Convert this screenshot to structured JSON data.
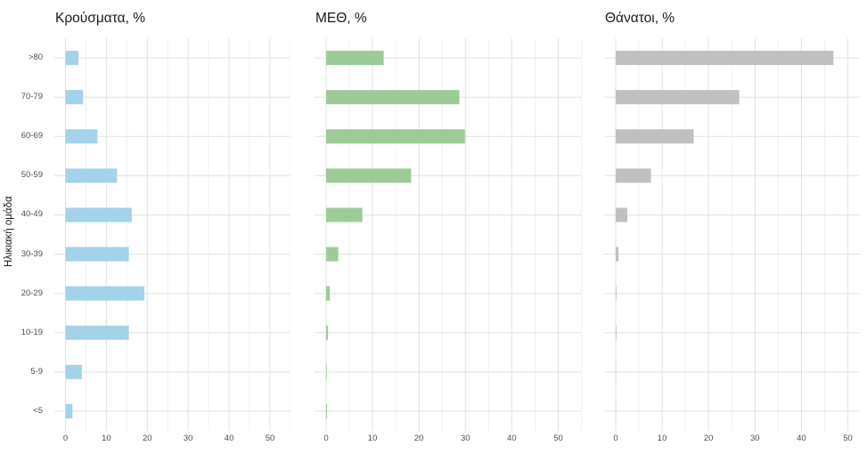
{
  "chart_data": [
    {
      "type": "bar",
      "orientation": "horizontal",
      "title": "Κρούσματα, %",
      "ylabel": "Ηλικιακή ομάδα",
      "xlabel": "",
      "bar_color": "#A3D2EB",
      "categories": [
        ">80",
        "70-79",
        "60-69",
        "50-59",
        "40-49",
        "30-39",
        "20-29",
        "10-19",
        "5-9",
        "<5"
      ],
      "values": [
        3.2,
        4.3,
        7.8,
        12.6,
        16.2,
        15.5,
        19.3,
        15.5,
        4.0,
        1.7
      ],
      "xlim": [
        0,
        55
      ],
      "x_ticks": [
        0,
        10,
        20,
        30,
        40,
        50
      ],
      "grid": "major-and-minor, minor every 5",
      "legend": "none"
    },
    {
      "type": "bar",
      "orientation": "horizontal",
      "title": "ΜΕΘ, %",
      "ylabel": "Ηλικιακή ομάδα",
      "xlabel": "",
      "bar_color": "#9CCB98",
      "categories": [
        ">80",
        "70-79",
        "60-69",
        "50-59",
        "40-49",
        "30-39",
        "20-29",
        "10-19",
        "5-9",
        "<5"
      ],
      "values": [
        12.4,
        28.7,
        29.9,
        18.3,
        7.8,
        2.6,
        0.8,
        0.4,
        0.15,
        0.2
      ],
      "xlim": [
        0,
        55
      ],
      "x_ticks": [
        0,
        10,
        20,
        30,
        40,
        50
      ],
      "grid": "major-and-minor, minor every 5",
      "legend": "none"
    },
    {
      "type": "bar",
      "orientation": "horizontal",
      "title": "Θάνατοι, %",
      "ylabel": "Ηλικιακή ομάδα",
      "xlabel": "",
      "bar_color": "#C0C0C0",
      "categories": [
        ">80",
        "70-79",
        "60-69",
        "50-59",
        "40-49",
        "30-39",
        "20-29",
        "10-19",
        "5-9",
        "<5"
      ],
      "values": [
        46.9,
        26.6,
        16.8,
        7.6,
        2.5,
        0.6,
        0.15,
        0.15,
        0.05,
        0.05
      ],
      "xlim": [
        0,
        52
      ],
      "x_ticks": [
        0,
        10,
        20,
        30,
        40,
        50
      ],
      "grid": "major-and-minor, minor every 5",
      "legend": "none"
    }
  ],
  "colors": {
    "background": "#FFFFFF",
    "grid_major": "#E4E4E4",
    "grid_minor": "#F0F0F0",
    "axis_text": "#4d4d4d",
    "title_text": "#1a1a1a"
  }
}
